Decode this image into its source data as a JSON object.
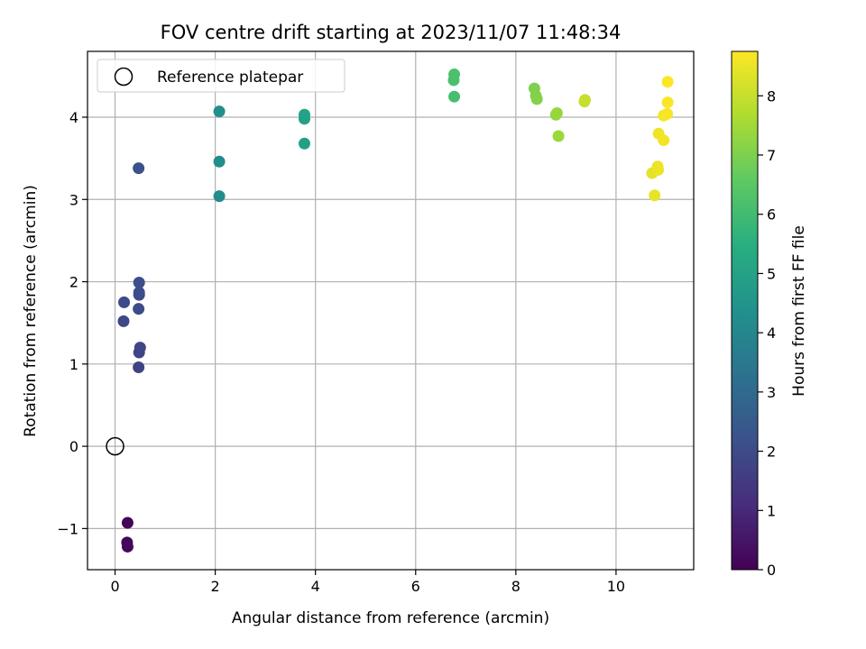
{
  "chart_data": {
    "type": "scatter",
    "title": "FOV centre drift starting at 2023/11/07 11:48:34",
    "xlabel": "Angular distance from reference (arcmin)",
    "ylabel": "Rotation from reference (arcmin)",
    "xlim": [
      -0.55,
      11.55
    ],
    "ylim": [
      -1.5,
      4.8
    ],
    "xticks": [
      0,
      2,
      4,
      6,
      8,
      10
    ],
    "yticks": [
      -1,
      0,
      1,
      2,
      3,
      4
    ],
    "grid": true,
    "legend": {
      "placement": "top-left",
      "entries": [
        {
          "label": "Reference platepar",
          "marker": "open-circle"
        }
      ]
    },
    "reference_point": {
      "x": 0,
      "y": 0
    },
    "colorbar": {
      "label": "Hours from first FF file",
      "range": [
        0,
        8.75
      ],
      "ticks": [
        0,
        1,
        2,
        3,
        4,
        5,
        6,
        7,
        8
      ],
      "colormap": "viridis"
    },
    "points": [
      {
        "x": 0.25,
        "y": -0.93,
        "hours": 0.1
      },
      {
        "x": 0.24,
        "y": -1.17,
        "hours": 0.15
      },
      {
        "x": 0.25,
        "y": -1.22,
        "hours": 0.2
      },
      {
        "x": 0.47,
        "y": 0.96,
        "hours": 1.7
      },
      {
        "x": 0.48,
        "y": 1.14,
        "hours": 1.75
      },
      {
        "x": 0.5,
        "y": 1.2,
        "hours": 1.8
      },
      {
        "x": 0.17,
        "y": 1.52,
        "hours": 1.9
      },
      {
        "x": 0.18,
        "y": 1.75,
        "hours": 1.95
      },
      {
        "x": 0.47,
        "y": 1.67,
        "hours": 2.0
      },
      {
        "x": 0.48,
        "y": 1.84,
        "hours": 2.05
      },
      {
        "x": 0.48,
        "y": 1.87,
        "hours": 2.08
      },
      {
        "x": 0.48,
        "y": 1.99,
        "hours": 2.1
      },
      {
        "x": 0.47,
        "y": 3.38,
        "hours": 2.2
      },
      {
        "x": 2.08,
        "y": 3.04,
        "hours": 4.2
      },
      {
        "x": 2.08,
        "y": 3.46,
        "hours": 4.25
      },
      {
        "x": 2.08,
        "y": 4.07,
        "hours": 4.3
      },
      {
        "x": 3.78,
        "y": 3.68,
        "hours": 4.9
      },
      {
        "x": 3.78,
        "y": 3.98,
        "hours": 4.95
      },
      {
        "x": 3.78,
        "y": 4.03,
        "hours": 5.0
      },
      {
        "x": 6.77,
        "y": 4.25,
        "hours": 6.1
      },
      {
        "x": 6.76,
        "y": 4.45,
        "hours": 6.15
      },
      {
        "x": 6.77,
        "y": 4.52,
        "hours": 6.2
      },
      {
        "x": 8.37,
        "y": 4.35,
        "hours": 7.0
      },
      {
        "x": 8.4,
        "y": 4.26,
        "hours": 7.05
      },
      {
        "x": 8.42,
        "y": 4.22,
        "hours": 7.08
      },
      {
        "x": 8.8,
        "y": 4.03,
        "hours": 7.3
      },
      {
        "x": 8.82,
        "y": 4.05,
        "hours": 7.35
      },
      {
        "x": 8.85,
        "y": 3.77,
        "hours": 7.4
      },
      {
        "x": 9.37,
        "y": 4.19,
        "hours": 7.95
      },
      {
        "x": 9.38,
        "y": 4.21,
        "hours": 8.0
      },
      {
        "x": 10.72,
        "y": 3.32,
        "hours": 8.4
      },
      {
        "x": 10.77,
        "y": 3.05,
        "hours": 8.45
      },
      {
        "x": 10.83,
        "y": 3.4,
        "hours": 8.5
      },
      {
        "x": 10.84,
        "y": 3.36,
        "hours": 8.52
      },
      {
        "x": 10.85,
        "y": 3.8,
        "hours": 8.55
      },
      {
        "x": 10.95,
        "y": 3.72,
        "hours": 8.6
      },
      {
        "x": 10.95,
        "y": 4.02,
        "hours": 8.62
      },
      {
        "x": 11.02,
        "y": 4.04,
        "hours": 8.65
      },
      {
        "x": 11.03,
        "y": 4.18,
        "hours": 8.7
      },
      {
        "x": 11.03,
        "y": 4.43,
        "hours": 8.75
      }
    ]
  }
}
